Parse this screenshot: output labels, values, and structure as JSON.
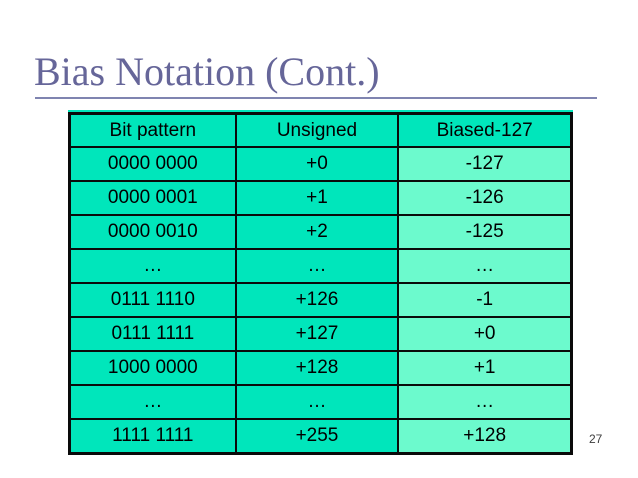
{
  "slide": {
    "title": "Bias Notation (Cont.)",
    "page_number": "27"
  },
  "accent_bars": {
    "yellow": "#FFCC00",
    "orange": "#FF9900",
    "blue": "#666699"
  },
  "colors": {
    "title_text": "#666699",
    "title_rule": "#7F84B0",
    "cell_turquoise": "#00E6BB",
    "cell_mint": "#6CFACD",
    "table_border": "#0A0A0A"
  },
  "table": {
    "headers": [
      "Bit pattern",
      "Unsigned",
      "Biased-127"
    ],
    "rows": [
      [
        "0000 0000",
        "+0",
        "-127"
      ],
      [
        "0000 0001",
        "+1",
        "-126"
      ],
      [
        "0000 0010",
        "+2",
        "-125"
      ],
      [
        "…",
        "…",
        "…"
      ],
      [
        "0111 1110",
        "+126",
        "-1"
      ],
      [
        "0111 1111",
        "+127",
        "+0"
      ],
      [
        "1000 0000",
        "+128",
        "+1"
      ],
      [
        "…",
        "…",
        "…"
      ],
      [
        "1111 1111",
        "+255",
        "+128"
      ]
    ]
  }
}
